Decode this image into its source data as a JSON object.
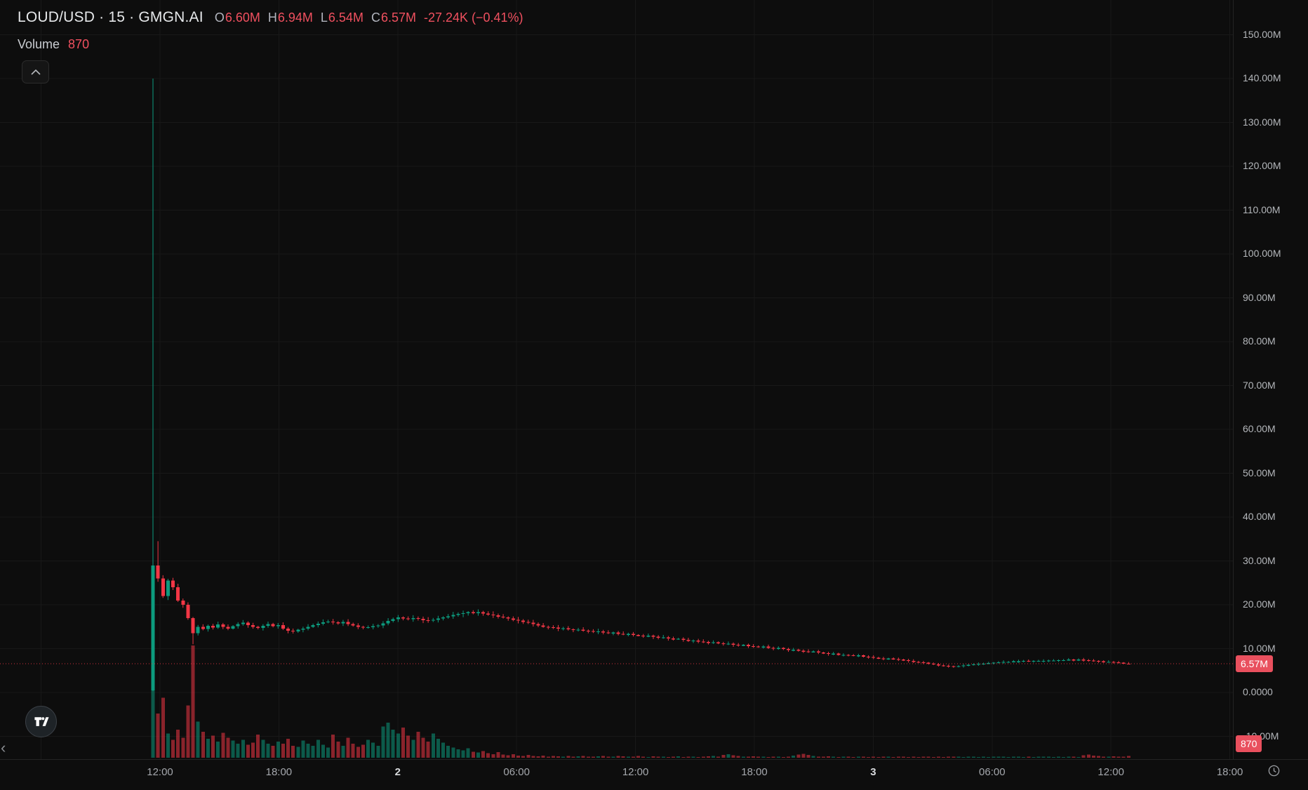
{
  "header": {
    "symbol_line": "LOUD/USD · 15 · GMGN.AI",
    "ohlc": {
      "o_label": "O",
      "o": "6.60M",
      "h_label": "H",
      "h": "6.94M",
      "l_label": "L",
      "l": "6.54M",
      "c_label": "C",
      "c": "6.57M",
      "change": "-27.24K (−0.41%)"
    },
    "volume_label": "Volume",
    "volume_value": "870"
  },
  "badges": {
    "price": "6.57M",
    "volume": "870"
  },
  "colors": {
    "bg": "#0d0d0d",
    "grid": "#181818",
    "up": "#0c9b7e",
    "down": "#f23645",
    "badge": "#e9505e",
    "red_text": "#f0505f",
    "axis_text": "#b4b7bb"
  },
  "chart_data": {
    "type": "candlestick_with_volume",
    "symbol": "LOUD/USD",
    "interval": "15",
    "venue": "GMGN.AI",
    "price_unit": "M",
    "last": {
      "open": 6.6,
      "high": 6.94,
      "low": 6.54,
      "close": 6.57,
      "change": "-27.24K",
      "change_pct": "-0.41%",
      "volume": 870
    },
    "y_axis": {
      "min": -10,
      "max": 150,
      "tick_step": 10
    },
    "price_ticks": [
      {
        "label": "150.00M",
        "value": 150
      },
      {
        "label": "140.00M",
        "value": 140
      },
      {
        "label": "130.00M",
        "value": 130
      },
      {
        "label": "120.00M",
        "value": 120
      },
      {
        "label": "110.00M",
        "value": 110
      },
      {
        "label": "100.00M",
        "value": 100
      },
      {
        "label": "90.00M",
        "value": 90
      },
      {
        "label": "80.00M",
        "value": 80
      },
      {
        "label": "70.00M",
        "value": 70
      },
      {
        "label": "60.00M",
        "value": 60
      },
      {
        "label": "50.00M",
        "value": 50
      },
      {
        "label": "40.00M",
        "value": 40
      },
      {
        "label": "30.00M",
        "value": 30
      },
      {
        "label": "20.00M",
        "value": 20
      },
      {
        "label": "10.00M",
        "value": 10
      },
      {
        "label": "0.0000",
        "value": 0
      },
      {
        "label": "-10.00M",
        "value": -10
      }
    ],
    "time_ticks": [
      {
        "label": "12:00",
        "major": false
      },
      {
        "label": "18:00",
        "major": false
      },
      {
        "label": "2",
        "major": true
      },
      {
        "label": "06:00",
        "major": false
      },
      {
        "label": "12:00",
        "major": false
      },
      {
        "label": "18:00",
        "major": false
      },
      {
        "label": "3",
        "major": true
      },
      {
        "label": "06:00",
        "major": false
      },
      {
        "label": "12:00",
        "major": false
      },
      {
        "label": "18:00",
        "major": false
      }
    ],
    "first_open": 0.5,
    "wick_overrides": {
      "0": {
        "high": 140,
        "low": 0.3
      },
      "1": {
        "high": 34.5
      },
      "8": {
        "low": 11
      },
      "195": {
        "high": 6.94,
        "low": 6.54
      }
    },
    "closes": [
      29,
      26,
      22,
      25.5,
      24,
      21,
      20,
      17,
      13.5,
      15,
      14.5,
      15.2,
      14.8,
      15.5,
      15.0,
      14.6,
      15.1,
      15.6,
      15.9,
      15.4,
      15.0,
      14.7,
      15.2,
      15.6,
      15.1,
      15.4,
      14.6,
      14.1,
      13.9,
      14.3,
      14.6,
      15.0,
      15.4,
      15.7,
      16.0,
      16.2,
      16.0,
      15.8,
      16.1,
      15.6,
      15.3,
      15.0,
      14.8,
      14.9,
      15.1,
      15.3,
      15.8,
      16.3,
      16.7,
      17.1,
      16.9,
      16.7,
      17.0,
      16.8,
      16.5,
      16.4,
      16.6,
      16.9,
      17.1,
      17.4,
      17.7,
      17.9,
      18.1,
      18.3,
      18.2,
      18.3,
      18.0,
      17.8,
      17.6,
      17.3,
      17.1,
      16.9,
      16.6,
      16.4,
      16.1,
      15.9,
      15.6,
      15.3,
      15.0,
      14.9,
      14.8,
      14.6,
      14.65,
      14.4,
      14.3,
      14.35,
      14.1,
      14.0,
      13.9,
      13.95,
      13.7,
      13.6,
      13.65,
      13.4,
      13.3,
      13.35,
      13.1,
      13.0,
      12.9,
      12.95,
      12.7,
      12.5,
      12.6,
      12.3,
      12.2,
      12.25,
      12.0,
      11.8,
      11.85,
      11.6,
      11.5,
      11.4,
      11.45,
      11.2,
      11.1,
      11.15,
      10.9,
      10.8,
      10.85,
      10.6,
      10.5,
      10.4,
      10.45,
      10.2,
      10.1,
      10.15,
      9.9,
      9.7,
      9.75,
      9.5,
      9.4,
      9.3,
      9.35,
      9.1,
      9.0,
      8.8,
      8.85,
      8.6,
      8.6,
      8.5,
      8.4,
      8.45,
      8.2,
      8.1,
      7.9,
      7.8,
      7.7,
      7.75,
      7.6,
      7.5,
      7.4,
      7.2,
      7.0,
      6.9,
      6.8,
      6.6,
      6.4,
      6.2,
      6.1,
      6.0,
      5.9,
      6.0,
      6.2,
      6.3,
      6.4,
      6.5,
      6.6,
      6.7,
      6.8,
      6.9,
      7.0,
      7.0,
      7.1,
      7.1,
      7.2,
      7.1,
      7.2,
      7.2,
      7.2,
      7.3,
      7.3,
      7.4,
      7.4,
      7.5,
      7.4,
      7.5,
      7.4,
      7.3,
      7.2,
      7.1,
      7.0,
      7.0,
      6.9,
      6.8,
      6.6,
      6.57
    ],
    "volumes": [
      48000,
      22000,
      30000,
      12000,
      9000,
      14000,
      10000,
      26000,
      56000,
      18000,
      13000,
      9500,
      11000,
      8000,
      12500,
      10000,
      8500,
      7000,
      9000,
      6500,
      7500,
      11500,
      9000,
      7000,
      6000,
      8000,
      7000,
      9500,
      6000,
      5500,
      8500,
      7000,
      6000,
      9000,
      6500,
      5000,
      11500,
      8000,
      6000,
      10000,
      7000,
      5500,
      6500,
      9000,
      7500,
      6000,
      15500,
      17500,
      14000,
      12000,
      15000,
      11000,
      9000,
      13000,
      10000,
      8000,
      12000,
      9500,
      7500,
      6000,
      5000,
      4200,
      3600,
      4800,
      3000,
      2600,
      3400,
      2200,
      1800,
      2800,
      1500,
      1200,
      1800,
      1000,
      900,
      1400,
      800,
      700,
      1100,
      600,
      900,
      700,
      600,
      800,
      500,
      700,
      900,
      600,
      500,
      700,
      800,
      600,
      500,
      900,
      700,
      500,
      600,
      800,
      500,
      400,
      700,
      500,
      600,
      400,
      500,
      700,
      400,
      500,
      600,
      400,
      500,
      700,
      900,
      600,
      1400,
      1800,
      1200,
      800,
      600,
      500,
      700,
      500,
      600,
      400,
      500,
      600,
      400,
      500,
      1000,
      1600,
      2000,
      1400,
      900,
      600,
      500,
      700,
      500,
      400,
      600,
      500,
      400,
      500,
      600,
      400,
      500,
      400,
      600,
      500,
      400,
      500,
      600,
      400,
      500,
      400,
      600,
      500,
      400,
      500,
      400,
      500,
      600,
      500,
      400,
      500,
      600,
      400,
      500,
      400,
      500,
      600,
      500,
      400,
      500,
      600,
      400,
      500,
      400,
      500,
      600,
      500,
      400,
      500,
      400,
      600,
      500,
      400,
      1200,
      1600,
      1100,
      800,
      600,
      500,
      700,
      500,
      600,
      870
    ]
  }
}
